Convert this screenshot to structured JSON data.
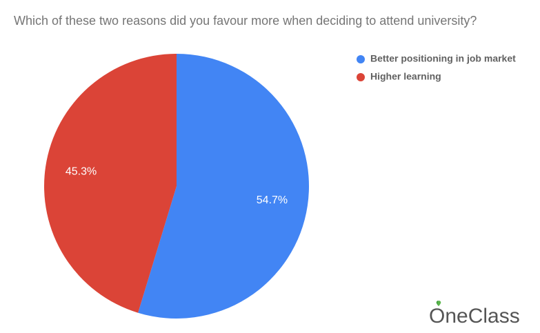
{
  "chart_data": {
    "type": "pie",
    "title": "Which of these two reasons did you favour more when deciding to attend university?",
    "categories": [
      "Better positioning in job market",
      "Higher learning"
    ],
    "values": [
      54.7,
      45.3
    ],
    "value_labels": [
      "54.7%",
      "45.3%"
    ],
    "colors": [
      "#4285f4",
      "#db4437"
    ],
    "legend": "right"
  },
  "watermark": "OneClass"
}
